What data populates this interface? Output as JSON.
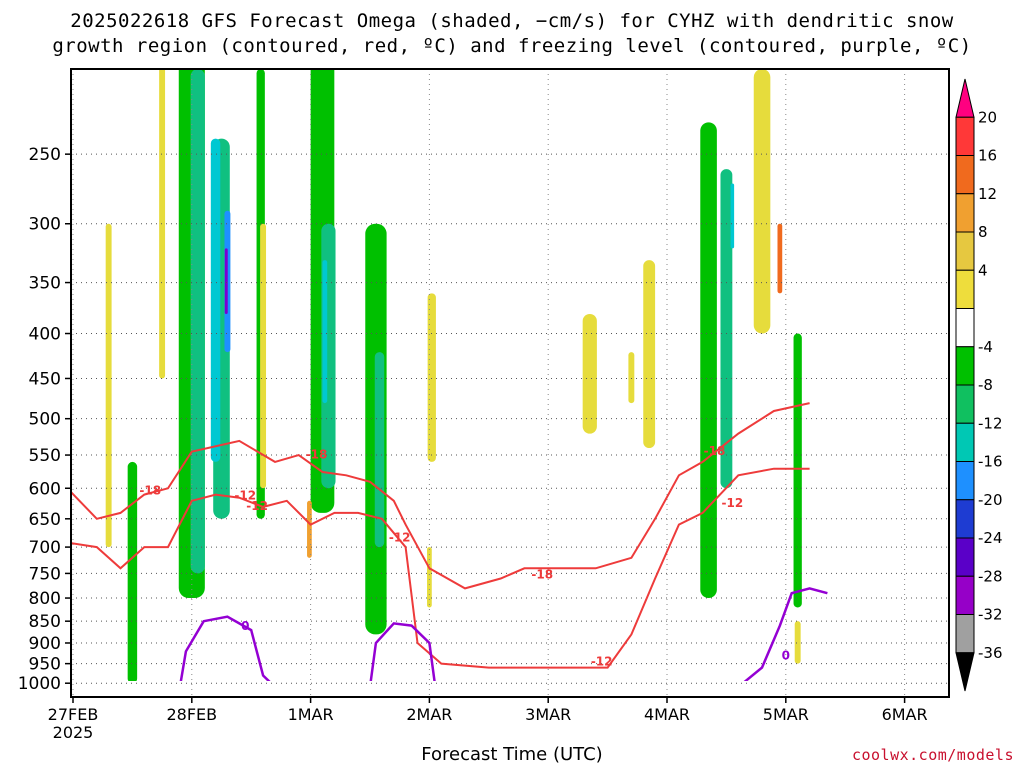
{
  "title_line1": "2025022618 GFS Forecast Omega (shaded, −cm/s) for CYHZ with dendritic snow",
  "title_line2": "growth region (contoured, red, ºC) and freezing level (contoured, purple, ºC)",
  "credit": "coolwx.com/models",
  "chart_data": {
    "type": "heatmap",
    "xlabel": "Forecast Time (UTC)",
    "ylabel": "",
    "x_ticks": [
      "27FEB",
      "28FEB",
      "1MAR",
      "2MAR",
      "3MAR",
      "4MAR",
      "5MAR",
      "6MAR"
    ],
    "x_tick_sublabel": "2025",
    "y_ticks": [
      250,
      300,
      350,
      400,
      450,
      500,
      550,
      600,
      650,
      700,
      750,
      800,
      850,
      900,
      950,
      1000
    ],
    "y_axis_scale": "log-pressure",
    "grid": true,
    "colorbar": {
      "ticks": [
        20,
        16,
        12,
        8,
        4,
        -4,
        -8,
        -12,
        -16,
        -20,
        -24,
        -28,
        -32,
        -36
      ],
      "colors": [
        "#ff0080",
        "#ff3838",
        "#f06a1e",
        "#f0a030",
        "#e6c840",
        "#eedd3c",
        "#ffffff",
        "#00c000",
        "#10c060",
        "#00c8b4",
        "#1e90ff",
        "#1e3cd2",
        "#5a00c8",
        "#9600c8",
        "#a0a0a0",
        "#000000"
      ]
    },
    "contours": [
      {
        "label": "-18",
        "color": "#ee3b3b"
      },
      {
        "label": "-12",
        "color": "#ee3b3b"
      },
      {
        "label": "0",
        "color": "#9400d3"
      }
    ],
    "omega_cells": [
      {
        "day": 0.5,
        "p0": 1000,
        "p1": 560,
        "w": 0.08,
        "v": -4
      },
      {
        "day": 0.3,
        "p0": 700,
        "p1": 300,
        "w": 0.05,
        "v": 4
      },
      {
        "day": 0.75,
        "p0": 450,
        "p1": 180,
        "w": 0.05,
        "v": 4
      },
      {
        "day": 1.0,
        "p0": 800,
        "p1": 160,
        "w": 0.22,
        "v": -8
      },
      {
        "day": 1.05,
        "p0": 750,
        "p1": 200,
        "w": 0.12,
        "v": -12
      },
      {
        "day": 1.25,
        "p0": 650,
        "p1": 240,
        "w": 0.14,
        "v": -12
      },
      {
        "day": 1.2,
        "p0": 560,
        "p1": 240,
        "w": 0.08,
        "v": -16
      },
      {
        "day": 1.3,
        "p0": 420,
        "p1": 290,
        "w": 0.05,
        "v": -20
      },
      {
        "day": 1.29,
        "p0": 380,
        "p1": 320,
        "w": 0.025,
        "v": -28
      },
      {
        "day": 1.58,
        "p0": 650,
        "p1": 200,
        "w": 0.07,
        "v": -8
      },
      {
        "day": 1.6,
        "p0": 600,
        "p1": 300,
        "w": 0.05,
        "v": 4
      },
      {
        "day": 2.05,
        "p0": 560,
        "p1": 230,
        "w": 0.06,
        "v": 4
      },
      {
        "day": 2.1,
        "p0": 640,
        "p1": 190,
        "w": 0.2,
        "v": -8
      },
      {
        "day": 2.15,
        "p0": 600,
        "p1": 300,
        "w": 0.12,
        "v": -12
      },
      {
        "day": 2.12,
        "p0": 480,
        "p1": 330,
        "w": 0.04,
        "v": -16
      },
      {
        "day": 2.55,
        "p0": 880,
        "p1": 300,
        "w": 0.18,
        "v": -8
      },
      {
        "day": 2.58,
        "p0": 700,
        "p1": 420,
        "w": 0.08,
        "v": -12
      },
      {
        "day": 1.99,
        "p0": 720,
        "p1": 620,
        "w": 0.04,
        "v": 8
      },
      {
        "day": 3.02,
        "p0": 560,
        "p1": 360,
        "w": 0.07,
        "v": 4
      },
      {
        "day": 3.0,
        "p0": 820,
        "p1": 700,
        "w": 0.04,
        "v": 4
      },
      {
        "day": 4.35,
        "p0": 520,
        "p1": 380,
        "w": 0.12,
        "v": 4
      },
      {
        "day": 4.85,
        "p0": 540,
        "p1": 330,
        "w": 0.1,
        "v": 4
      },
      {
        "day": 4.7,
        "p0": 480,
        "p1": 420,
        "w": 0.05,
        "v": 4
      },
      {
        "day": 5.35,
        "p0": 800,
        "p1": 230,
        "w": 0.14,
        "v": -8
      },
      {
        "day": 5.5,
        "p0": 600,
        "p1": 260,
        "w": 0.1,
        "v": -12
      },
      {
        "day": 5.55,
        "p0": 320,
        "p1": 270,
        "w": 0.03,
        "v": -16
      },
      {
        "day": 5.8,
        "p0": 400,
        "p1": 200,
        "w": 0.14,
        "v": 4
      },
      {
        "day": 5.95,
        "p0": 360,
        "p1": 300,
        "w": 0.04,
        "v": 12
      },
      {
        "day": 6.1,
        "p0": 820,
        "p1": 400,
        "w": 0.07,
        "v": -8
      },
      {
        "day": 6.1,
        "p0": 950,
        "p1": 850,
        "w": 0.05,
        "v": 4
      }
    ],
    "dgz_top_18": [
      [
        -0.1,
        590
      ],
      [
        0.2,
        650
      ],
      [
        0.4,
        640
      ],
      [
        0.6,
        610
      ],
      [
        0.8,
        600
      ],
      [
        1.0,
        545
      ],
      [
        1.4,
        530
      ],
      [
        1.7,
        560
      ],
      [
        1.9,
        550
      ],
      [
        2.1,
        575
      ],
      [
        2.3,
        580
      ],
      [
        2.5,
        590
      ],
      [
        2.7,
        620
      ],
      [
        2.8,
        660
      ],
      [
        3.0,
        740
      ],
      [
        3.3,
        780
      ],
      [
        3.6,
        760
      ],
      [
        3.8,
        740
      ],
      [
        4.1,
        740
      ],
      [
        4.4,
        740
      ],
      [
        4.7,
        720
      ],
      [
        4.9,
        650
      ],
      [
        5.1,
        580
      ],
      [
        5.3,
        560
      ],
      [
        5.6,
        520
      ],
      [
        5.9,
        490
      ],
      [
        6.2,
        480
      ]
    ],
    "dgz_bottom_12": [
      [
        -0.1,
        690
      ],
      [
        0.2,
        700
      ],
      [
        0.4,
        740
      ],
      [
        0.6,
        700
      ],
      [
        0.8,
        700
      ],
      [
        1.0,
        620
      ],
      [
        1.2,
        610
      ],
      [
        1.4,
        615
      ],
      [
        1.6,
        630
      ],
      [
        1.8,
        620
      ],
      [
        2.0,
        660
      ],
      [
        2.2,
        640
      ],
      [
        2.4,
        640
      ],
      [
        2.6,
        650
      ],
      [
        2.8,
        700
      ],
      [
        2.9,
        900
      ],
      [
        3.1,
        950
      ],
      [
        3.5,
        960
      ],
      [
        3.9,
        960
      ],
      [
        4.2,
        960
      ],
      [
        4.5,
        960
      ],
      [
        4.7,
        880
      ],
      [
        4.9,
        760
      ],
      [
        5.1,
        660
      ],
      [
        5.3,
        640
      ],
      [
        5.6,
        580
      ],
      [
        5.9,
        570
      ],
      [
        6.2,
        570
      ]
    ],
    "freezing_0": [
      [
        0.9,
        1010
      ],
      [
        0.95,
        920
      ],
      [
        1.1,
        850
      ],
      [
        1.3,
        840
      ],
      [
        1.5,
        870
      ],
      [
        1.6,
        980
      ],
      [
        1.7,
        1010
      ]
    ],
    "freezing_0b": [
      [
        2.5,
        1010
      ],
      [
        2.55,
        900
      ],
      [
        2.7,
        855
      ],
      [
        2.85,
        860
      ],
      [
        3.0,
        900
      ],
      [
        3.05,
        1010
      ]
    ],
    "freezing_0c": [
      [
        5.6,
        1010
      ],
      [
        5.8,
        960
      ],
      [
        5.95,
        860
      ],
      [
        6.05,
        790
      ],
      [
        6.2,
        780
      ],
      [
        6.35,
        790
      ]
    ]
  }
}
